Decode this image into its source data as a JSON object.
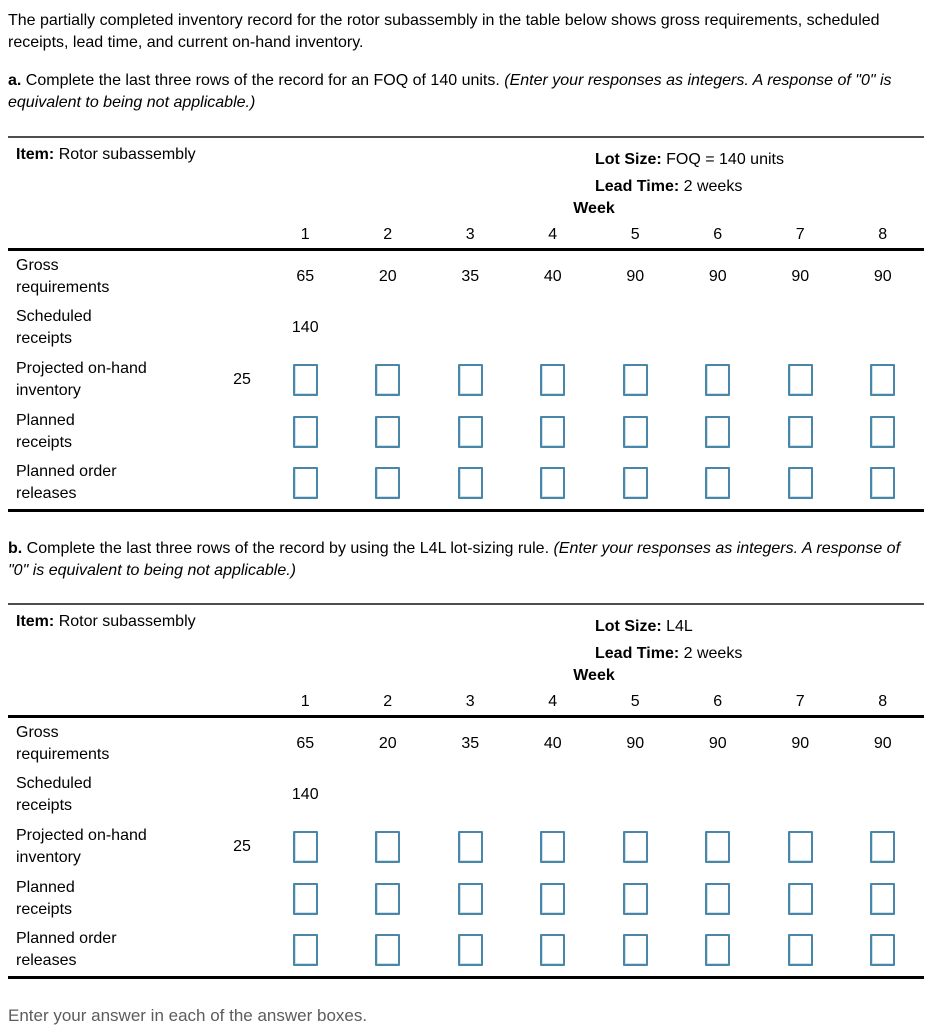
{
  "intro": "The partially completed inventory record for the rotor subassembly in the table below shows gross requirements, scheduled receipts, lead time, and current on-hand inventory.",
  "part_a": {
    "label": "a.",
    "text": "Complete the last three rows of the record for an FOQ of 140 units.",
    "note": "(Enter your responses as integers. A response of \"0\" is equivalent to being not applicable.)"
  },
  "part_b": {
    "label": "b.",
    "text": "Complete the last three rows of the record by using the L4L lot-sizing rule.",
    "note": "(Enter your responses as integers. A response of \"0\" is equivalent to being not applicable.)"
  },
  "footer": "Enter your answer in each of the answer boxes.",
  "colors": {
    "answer_box_border": "#4a86a8",
    "footer_text": "#5c5c5c"
  },
  "tables": [
    {
      "item_label": "Item:",
      "item": "Rotor subassembly",
      "lot_size_label": "Lot Size:",
      "lot_size": "FOQ = 140 units",
      "lead_time_label": "Lead Time:",
      "lead_time": "2 weeks",
      "week_label": "Week",
      "weeks": [
        "1",
        "2",
        "3",
        "4",
        "5",
        "6",
        "7",
        "8"
      ],
      "rows": [
        {
          "label_line1": "Gross",
          "label_line2": "requirements",
          "initial": "",
          "input": false,
          "cells": [
            "65",
            "20",
            "35",
            "40",
            "90",
            "90",
            "90",
            "90"
          ]
        },
        {
          "label_line1": "Scheduled",
          "label_line2": "receipts",
          "initial": "",
          "input": false,
          "cells": [
            "140",
            "",
            "",
            "",
            "",
            "",
            "",
            ""
          ]
        },
        {
          "label_line1": "Projected on-hand",
          "label_line2": "inventory",
          "initial": "25",
          "input": true,
          "cells": [
            "",
            "",
            "",
            "",
            "",
            "",
            "",
            ""
          ]
        },
        {
          "label_line1": "Planned",
          "label_line2": "receipts",
          "initial": "",
          "input": true,
          "cells": [
            "",
            "",
            "",
            "",
            "",
            "",
            "",
            ""
          ]
        },
        {
          "label_line1": "Planned order",
          "label_line2": "releases",
          "initial": "",
          "input": true,
          "cells": [
            "",
            "",
            "",
            "",
            "",
            "",
            "",
            ""
          ]
        }
      ]
    },
    {
      "item_label": "Item:",
      "item": "Rotor subassembly",
      "lot_size_label": "Lot Size:",
      "lot_size": "L4L",
      "lead_time_label": "Lead Time:",
      "lead_time": "2 weeks",
      "week_label": "Week",
      "weeks": [
        "1",
        "2",
        "3",
        "4",
        "5",
        "6",
        "7",
        "8"
      ],
      "rows": [
        {
          "label_line1": "Gross",
          "label_line2": "requirements",
          "initial": "",
          "input": false,
          "cells": [
            "65",
            "20",
            "35",
            "40",
            "90",
            "90",
            "90",
            "90"
          ]
        },
        {
          "label_line1": "Scheduled",
          "label_line2": "receipts",
          "initial": "",
          "input": false,
          "cells": [
            "140",
            "",
            "",
            "",
            "",
            "",
            "",
            ""
          ]
        },
        {
          "label_line1": "Projected on-hand",
          "label_line2": "inventory",
          "initial": "25",
          "input": true,
          "cells": [
            "",
            "",
            "",
            "",
            "",
            "",
            "",
            ""
          ]
        },
        {
          "label_line1": "Planned",
          "label_line2": "receipts",
          "initial": "",
          "input": true,
          "cells": [
            "",
            "",
            "",
            "",
            "",
            "",
            "",
            ""
          ]
        },
        {
          "label_line1": "Planned order",
          "label_line2": "releases",
          "initial": "",
          "input": true,
          "cells": [
            "",
            "",
            "",
            "",
            "",
            "",
            "",
            ""
          ]
        }
      ]
    }
  ]
}
